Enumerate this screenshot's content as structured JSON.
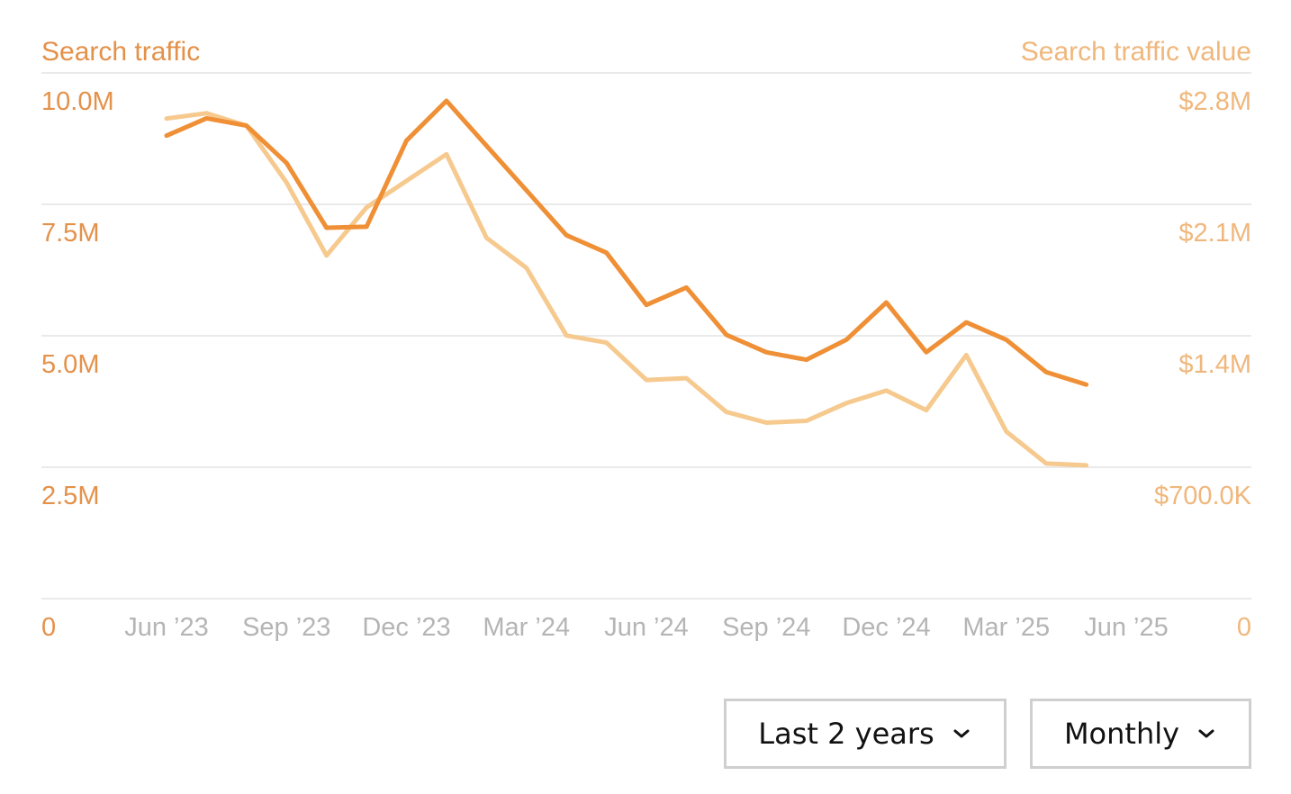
{
  "colors": {
    "traffic": "#ef8f36",
    "traffic_value": "#f6c98e",
    "left_axis_text": "#e4914a",
    "right_axis_text": "#f0b77c",
    "grid": "#e3e3e3",
    "x_tick_text": "#b5b5b5"
  },
  "chart_data": {
    "type": "line",
    "left_axis": {
      "title": "Search traffic",
      "ticks": [
        "10.0M",
        "7.5M",
        "5.0M",
        "2.5M",
        "0"
      ],
      "ylim": [
        0,
        10000000
      ]
    },
    "right_axis": {
      "title": "Search traffic value",
      "ticks": [
        "$2.8M",
        "$2.1M",
        "$1.4M",
        "$700.0K",
        "0"
      ],
      "ylim": [
        0,
        2800000
      ]
    },
    "x_ticks": [
      "Jun ’23",
      "Sep ’23",
      "Dec ’23",
      "Mar ’24",
      "Jun ’24",
      "Sep ’24",
      "Dec ’24",
      "Mar ’25",
      "Jun ’25"
    ],
    "x": [
      "2023-06",
      "2023-07",
      "2023-08",
      "2023-09",
      "2023-10",
      "2023-11",
      "2023-12",
      "2024-01",
      "2024-02",
      "2024-03",
      "2024-04",
      "2024-05",
      "2024-06",
      "2024-07",
      "2024-08",
      "2024-09",
      "2024-10",
      "2024-11",
      "2024-12",
      "2025-01",
      "2025-02",
      "2025-03",
      "2025-04",
      "2025-05"
    ],
    "xlim": [
      "2023-06",
      "2025-06"
    ],
    "grid": true,
    "legend": "none",
    "series": [
      {
        "axis": "left",
        "color_key": "traffic",
        "values": [
          9.3,
          9.65,
          9.5,
          8.75,
          7.45,
          7.47,
          9.2,
          10.0,
          9.1,
          8.2,
          7.3,
          6.95,
          5.9,
          6.25,
          5.3,
          4.95,
          4.8,
          5.2,
          5.95,
          4.95,
          5.55,
          5.2,
          4.55,
          4.3
        ]
      },
      {
        "axis": "right",
        "color_key": "traffic_value",
        "values": [
          2.7,
          2.73,
          2.66,
          2.34,
          1.93,
          2.2,
          2.35,
          2.5,
          2.03,
          1.86,
          1.48,
          1.44,
          1.23,
          1.24,
          1.05,
          0.99,
          1.0,
          1.1,
          1.17,
          1.06,
          1.37,
          0.94,
          0.76,
          0.75
        ]
      }
    ]
  },
  "controls": {
    "period": "Last 2 years",
    "interval": "Monthly"
  }
}
